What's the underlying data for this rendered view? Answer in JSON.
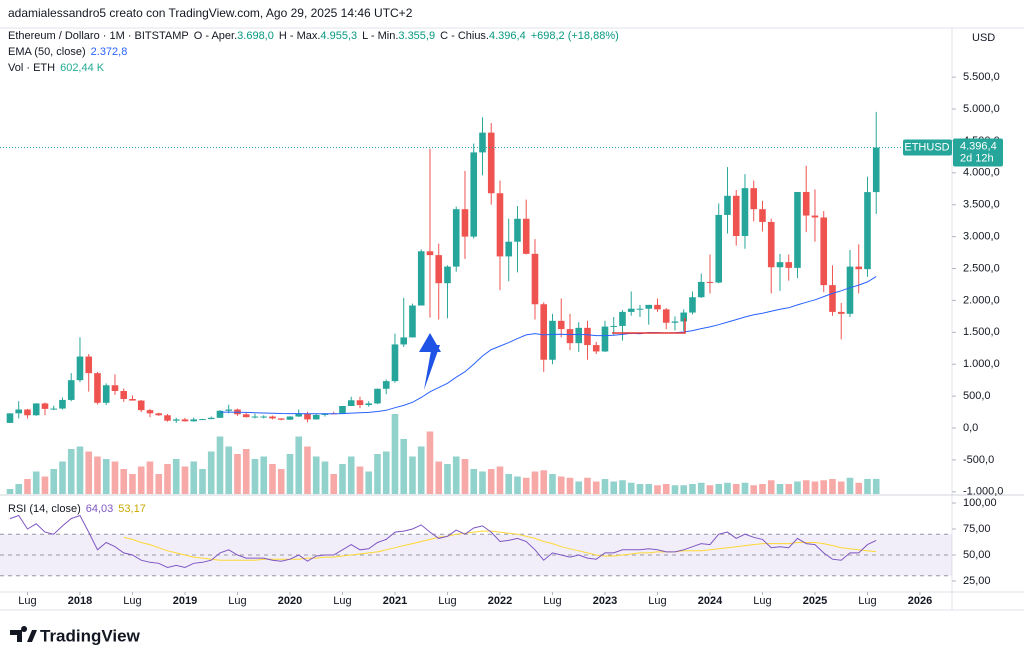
{
  "header": {
    "author": "adamialessandro5 creato con TradingView.com, Ago 29, 2025 14:46 UTC+2",
    "brand": "TradingView"
  },
  "chart_data": {
    "type": "candlestick",
    "legend": {
      "symbol": "Ethereum / Dollaro · 1M · BITSTAMP",
      "open_label": "O - Aper.",
      "open": "3.698,0",
      "high_label": "H - Max.",
      "high": "4.955,3",
      "low_label": "L - Min.",
      "low": "3.355,9",
      "close_label": "C - Chius.",
      "close": "4.396,4",
      "change": "+698,2 (+18,88%)",
      "ema_label": "EMA (50, close)",
      "ema": "2.372,8",
      "vol_label": "Vol · ETH",
      "vol": "602,44 K",
      "rsi_label": "RSI (14, close)",
      "rsi": "64,03",
      "rsi_ma": "53,17"
    },
    "currency": "USD",
    "badge": {
      "symbol": "ETHUSD",
      "price": "4.396,4",
      "countdown": "2d 12h"
    },
    "up_color": "#26a69a",
    "down_color": "#ef5350",
    "ema_color": "#2962ff",
    "rsi_color": "#7e57c2",
    "rsi_ma_color": "#fdd835",
    "open": [
      80,
      230,
      290,
      200,
      385,
      300,
      305,
      440,
      750,
      1120,
      860,
      395,
      670,
      580,
      455,
      430,
      280,
      230,
      200,
      115,
      135,
      105,
      135,
      140,
      160,
      270,
      290,
      215,
      170,
      180,
      180,
      150,
      130,
      180,
      220,
      135,
      205,
      230,
      225,
      345,
      435,
      360,
      385,
      615,
      735,
      1310,
      1420,
      1920,
      2770,
      2710,
      2270,
      2530,
      3430,
      3000,
      4320,
      4630,
      3680,
      2690,
      2920,
      3280,
      2730,
      1940,
      1070,
      1680,
      1550,
      1330,
      1570,
      1300,
      1200,
      1590,
      1600,
      1820,
      1870,
      1870,
      1930,
      1860,
      1650,
      1670,
      1810,
      2050,
      2290,
      2280,
      3340,
      3640,
      3010,
      3760,
      3430,
      3230,
      2520,
      2600,
      2510,
      3700,
      3330,
      3300,
      2240,
      1820,
      1790,
      2530,
      2490,
      3698
    ],
    "high": [
      230,
      420,
      300,
      390,
      400,
      350,
      480,
      860,
      1420,
      1160,
      880,
      700,
      840,
      620,
      510,
      440,
      300,
      240,
      220,
      160,
      160,
      165,
      145,
      180,
      280,
      365,
      305,
      235,
      225,
      200,
      195,
      155,
      185,
      290,
      255,
      230,
      230,
      255,
      345,
      490,
      490,
      420,
      620,
      760,
      1480,
      2040,
      1950,
      2800,
      4380,
      2890,
      2550,
      3470,
      4030,
      4460,
      4870,
      4780,
      3880,
      3280,
      3480,
      3580,
      2960,
      1970,
      1790,
      2030,
      1790,
      1660,
      1680,
      1350,
      1680,
      1740,
      1850,
      2140,
      1930,
      1930,
      2030,
      1880,
      1750,
      1860,
      2140,
      2420,
      2720,
      3520,
      4090,
      3730,
      3980,
      3880,
      3560,
      3280,
      2730,
      2720,
      3680,
      4110,
      3740,
      3400,
      2550,
      1960,
      2790,
      2880,
      3940,
      4955.3
    ],
    "low": [
      80,
      150,
      150,
      190,
      200,
      280,
      290,
      420,
      720,
      570,
      370,
      360,
      520,
      410,
      430,
      250,
      170,
      190,
      100,
      80,
      100,
      100,
      130,
      140,
      160,
      230,
      190,
      165,
      150,
      150,
      135,
      120,
      125,
      175,
      90,
      130,
      180,
      215,
      225,
      345,
      310,
      335,
      375,
      530,
      710,
      1270,
      1420,
      1920,
      1730,
      1700,
      1720,
      2450,
      2650,
      2970,
      3960,
      3500,
      2160,
      2300,
      2440,
      2720,
      1700,
      880,
      1000,
      1420,
      1220,
      1190,
      1070,
      1160,
      1190,
      1460,
      1370,
      1760,
      1740,
      1620,
      1820,
      1550,
      1530,
      1520,
      1780,
      2040,
      2110,
      2270,
      3050,
      2860,
      2810,
      3240,
      3080,
      2110,
      2150,
      2310,
      2350,
      3070,
      2920,
      2130,
      1760,
      1390,
      1740,
      2110,
      2370,
      3355.9
    ],
    "close": [
      230,
      290,
      200,
      385,
      300,
      305,
      440,
      750,
      1120,
      860,
      395,
      670,
      580,
      455,
      430,
      280,
      230,
      200,
      115,
      135,
      105,
      135,
      140,
      160,
      270,
      290,
      215,
      170,
      180,
      180,
      150,
      130,
      180,
      220,
      135,
      205,
      230,
      225,
      345,
      435,
      360,
      385,
      615,
      735,
      1310,
      1420,
      1920,
      2770,
      2710,
      2270,
      2530,
      3430,
      3000,
      4320,
      4630,
      3680,
      2690,
      2920,
      3280,
      2730,
      1940,
      1070,
      1680,
      1550,
      1330,
      1570,
      1300,
      1200,
      1590,
      1600,
      1820,
      1870,
      1870,
      1930,
      1860,
      1650,
      1670,
      1810,
      2050,
      2290,
      2280,
      3340,
      3640,
      3010,
      3760,
      3430,
      3230,
      2520,
      2600,
      2510,
      3700,
      3330,
      3300,
      2240,
      1820,
      1790,
      2530,
      2490,
      3698,
      4396.4
    ],
    "volume": [
      200,
      400,
      600,
      900,
      700,
      1000,
      1300,
      1800,
      1900,
      1700,
      1500,
      1400,
      1300,
      1000,
      800,
      1100,
      1300,
      800,
      1200,
      1400,
      1100,
      1300,
      1000,
      1700,
      2300,
      1900,
      1600,
      1800,
      1400,
      1500,
      1200,
      1000,
      1600,
      2300,
      1900,
      1500,
      1300,
      800,
      1200,
      1500,
      1100,
      900,
      1600,
      1700,
      3200,
      2200,
      1500,
      1900,
      2500,
      1300,
      1200,
      1500,
      1400,
      1000,
      900,
      1000,
      1100,
      800,
      700,
      650,
      900,
      950,
      800,
      700,
      650,
      500,
      650,
      500,
      600,
      500,
      550,
      450,
      400,
      400,
      350,
      400,
      350,
      350,
      400,
      450,
      350,
      400,
      450,
      400,
      450,
      350,
      400,
      550,
      400,
      400,
      500,
      550,
      500,
      550,
      600,
      500,
      650,
      450,
      600,
      602.44
    ],
    "ema": [
      null,
      null,
      null,
      null,
      null,
      null,
      null,
      null,
      null,
      null,
      null,
      null,
      null,
      null,
      null,
      null,
      null,
      null,
      null,
      null,
      null,
      null,
      null,
      null,
      250,
      250,
      248,
      245,
      240,
      236,
      232,
      228,
      226,
      226,
      222,
      222,
      222,
      222,
      226,
      234,
      239,
      245,
      259,
      278,
      318,
      355,
      403,
      478,
      567,
      633,
      701,
      796,
      882,
      1001,
      1128,
      1229,
      1284,
      1339,
      1402,
      1460,
      1480,
      1459,
      1467,
      1470,
      1464,
      1468,
      1461,
      1449,
      1448,
      1454,
      1468,
      1484,
      1478,
      1497,
      1496,
      1490,
      1493,
      1505,
      1527,
      1558,
      1585,
      1620,
      1660,
      1700,
      1740,
      1775,
      1800,
      1830,
      1860,
      1885,
      1930,
      1970,
      2010,
      2060,
      2110,
      2150,
      2200,
      2240,
      2290,
      2372.8
    ],
    "rsi": [
      85,
      88,
      75,
      80,
      72,
      70,
      78,
      85,
      88,
      72,
      55,
      62,
      58,
      52,
      50,
      45,
      43,
      42,
      38,
      40,
      38,
      42,
      43,
      45,
      52,
      55,
      50,
      47,
      47,
      47,
      45,
      44,
      46,
      50,
      44,
      49,
      50,
      50,
      55,
      60,
      55,
      56,
      62,
      65,
      72,
      73,
      75,
      79,
      72,
      66,
      68,
      74,
      70,
      76,
      78,
      72,
      63,
      64,
      66,
      63,
      55,
      45,
      52,
      50,
      48,
      50,
      47,
      46,
      52,
      52,
      55,
      55,
      55,
      56,
      55,
      53,
      53,
      55,
      58,
      61,
      60,
      70,
      72,
      66,
      70,
      67,
      65,
      57,
      58,
      57,
      66,
      61,
      60,
      52,
      46,
      45,
      52,
      52,
      60,
      64.03
    ],
    "rsi_ma": [
      null,
      null,
      null,
      null,
      null,
      null,
      null,
      null,
      null,
      null,
      null,
      null,
      null,
      67,
      65,
      62,
      60,
      57,
      54,
      52,
      50,
      48,
      47,
      46,
      45,
      45,
      45,
      45,
      45,
      46,
      46,
      46,
      46,
      46,
      47,
      47,
      48,
      48,
      49,
      50,
      51,
      52,
      53,
      55,
      57,
      59,
      61,
      63,
      65,
      67,
      68,
      70,
      71,
      72,
      73,
      73,
      72,
      71,
      70,
      68,
      66,
      63,
      61,
      58,
      56,
      54,
      52,
      50,
      49,
      49,
      50,
      51,
      52,
      52,
      53,
      53,
      53,
      54,
      54,
      54,
      55,
      56,
      57,
      58,
      59,
      60,
      61,
      61,
      61,
      61,
      62,
      62,
      62,
      61,
      59,
      57,
      56,
      55,
      54,
      53.17
    ],
    "rsi_levels": [
      30,
      50,
      70
    ],
    "xlim": [
      -1.14,
      107.66
    ],
    "xticks": [
      {
        "value": 2,
        "label": "Lug"
      },
      {
        "value": 8,
        "label": "2018"
      },
      {
        "value": 14,
        "label": "Lug"
      },
      {
        "value": 20,
        "label": "2019"
      },
      {
        "value": 26,
        "label": "Lug"
      },
      {
        "value": 32,
        "label": "2020"
      },
      {
        "value": 38,
        "label": "Lug"
      },
      {
        "value": 44,
        "label": "2021"
      },
      {
        "value": 50,
        "label": "Lug"
      },
      {
        "value": 56,
        "label": "2022"
      },
      {
        "value": 62,
        "label": "Lug"
      },
      {
        "value": 68,
        "label": "2023"
      },
      {
        "value": 74,
        "label": "Lug"
      },
      {
        "value": 80,
        "label": "2024"
      },
      {
        "value": 86,
        "label": "Lug"
      },
      {
        "value": 92,
        "label": "2025"
      },
      {
        "value": 98,
        "label": "Lug"
      },
      {
        "value": 104,
        "label": "2026"
      }
    ],
    "ylim": [
      -1050,
      6270
    ],
    "yticks": [
      {
        "value": 5500,
        "label": "5.500,0"
      },
      {
        "value": 5000,
        "label": "5.000,0"
      },
      {
        "value": 4500,
        "label": "4.500,0"
      },
      {
        "value": 4000,
        "label": "4.000,0"
      },
      {
        "value": 3500,
        "label": "3.500,0"
      },
      {
        "value": 3000,
        "label": "3.000,0"
      },
      {
        "value": 2500,
        "label": "2.500,0"
      },
      {
        "value": 2000,
        "label": "2.000,0"
      },
      {
        "value": 1500,
        "label": "1.500,0"
      },
      {
        "value": 1000,
        "label": "1.000,0"
      },
      {
        "value": 500,
        "label": "500,0"
      },
      {
        "value": 0,
        "label": "0,0"
      },
      {
        "value": -500,
        "label": "-500,0"
      },
      {
        "value": -1000,
        "label": "-1.000,0"
      }
    ],
    "y2lim": [
      14.4,
      105.8
    ],
    "y2ticks": [
      {
        "value": 100,
        "label": "100,00"
      },
      {
        "value": 75,
        "label": "75,00"
      },
      {
        "value": 50,
        "label": "50,00"
      },
      {
        "value": 25,
        "label": "25,00"
      }
    ]
  }
}
